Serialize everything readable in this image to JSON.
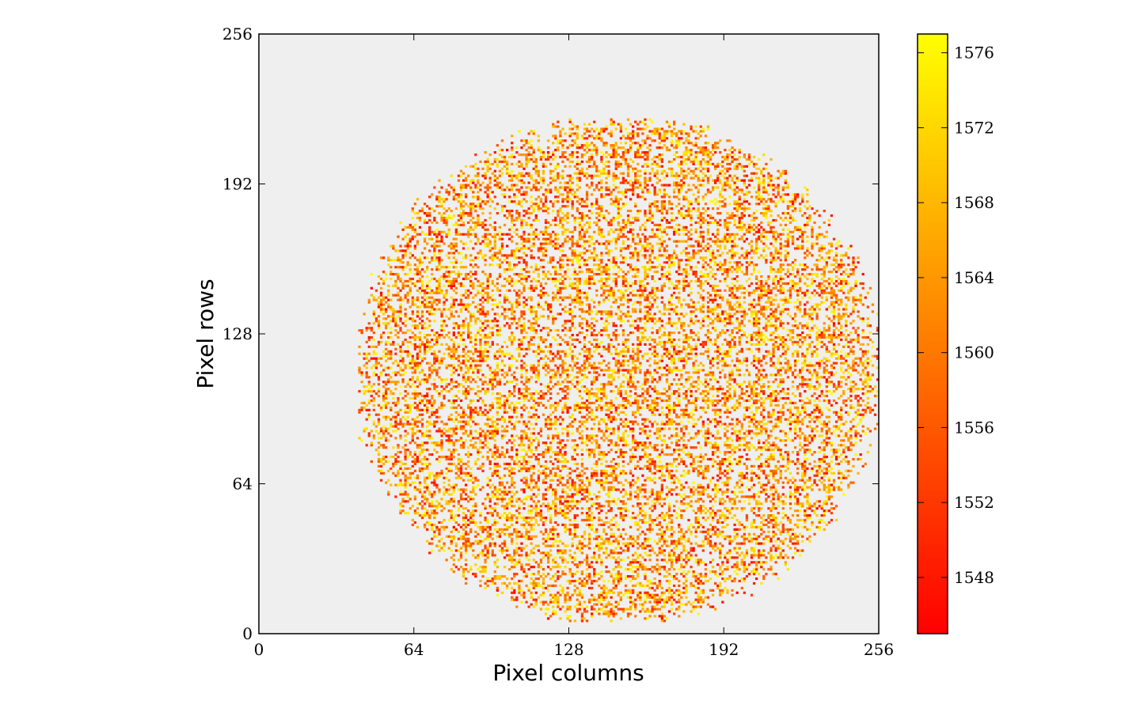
{
  "chart_data": {
    "type": "heatmap",
    "title": "",
    "xlabel": "Pixel columns",
    "ylabel": "Pixel rows",
    "xlim": [
      0,
      256
    ],
    "ylim": [
      0,
      256
    ],
    "x_ticks": [
      0,
      64,
      128,
      192,
      256
    ],
    "y_ticks": [
      0,
      64,
      128,
      192,
      256
    ],
    "background_color": "#efefef",
    "grid": false,
    "colormap": {
      "name": "autumn",
      "colors": [
        "#ff0000",
        "#ffff00"
      ],
      "range": [
        1545,
        1577
      ],
      "ticks": [
        1548,
        1552,
        1556,
        1560,
        1564,
        1568,
        1572,
        1576
      ],
      "placement": "right"
    },
    "data_region": {
      "shape": "circle",
      "center": [
        148,
        112
      ],
      "radius": 107,
      "fill_fraction": 0.37,
      "value_range": [
        1545,
        1577
      ]
    }
  }
}
